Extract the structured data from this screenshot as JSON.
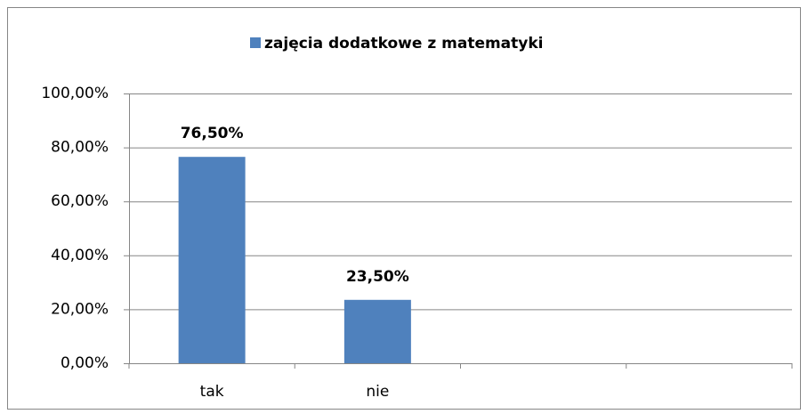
{
  "chart_data": {
    "type": "bar",
    "categories": [
      "tak",
      "nie",
      null,
      null
    ],
    "series": [
      {
        "name": "zajęcia dodatkowe z matematyki",
        "color": "#4f81bd",
        "values": [
          76.5,
          23.5,
          null,
          null
        ],
        "value_labels": [
          "76,50%",
          "23,50%",
          null,
          null
        ]
      }
    ],
    "ylim": [
      0,
      100
    ],
    "yticks": [
      {
        "value": 0,
        "label": "0,00%"
      },
      {
        "value": 20,
        "label": "20,00%"
      },
      {
        "value": 40,
        "label": "40,00%"
      },
      {
        "value": 60,
        "label": "60,00%"
      },
      {
        "value": 80,
        "label": "80,00%"
      },
      {
        "value": 100,
        "label": "100,00%"
      }
    ],
    "grid": true,
    "legend": "top"
  }
}
